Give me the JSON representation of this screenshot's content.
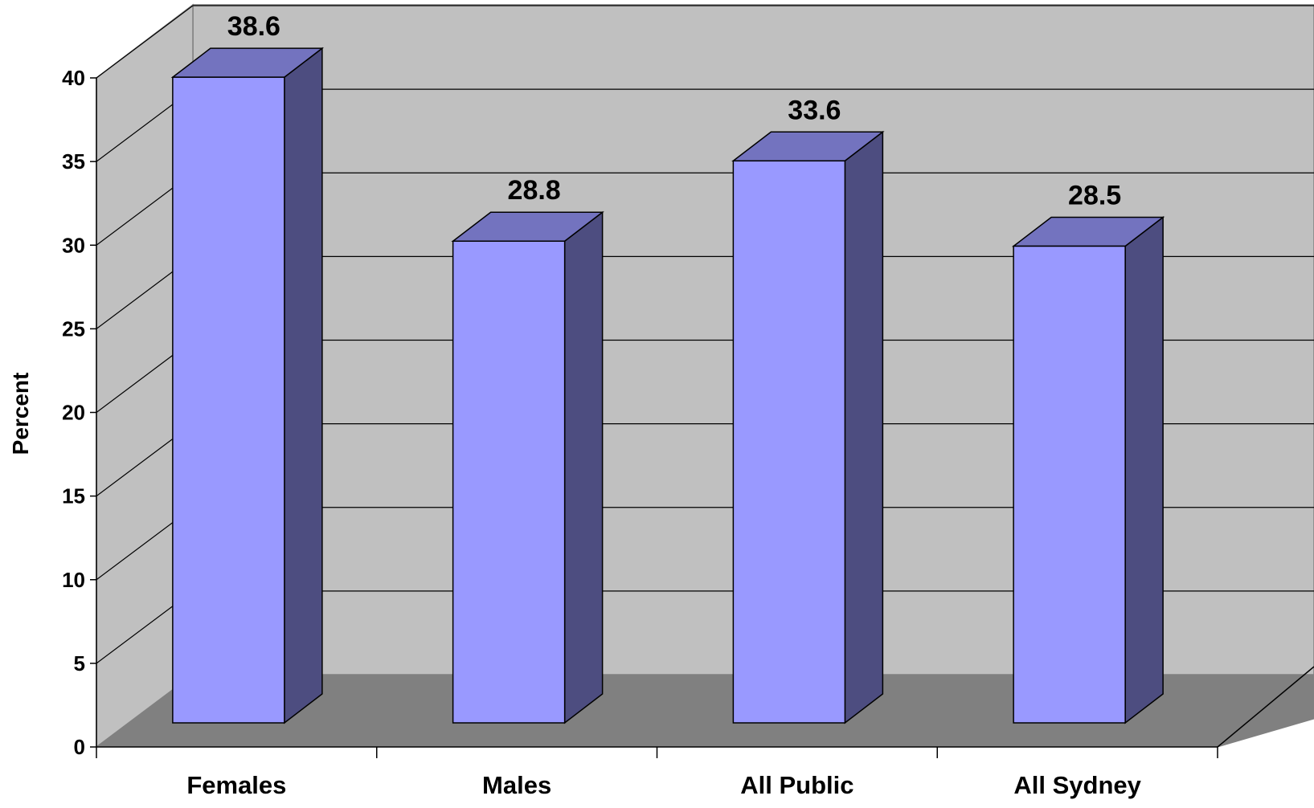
{
  "chart_data": {
    "type": "bar",
    "title": "",
    "xlabel": "",
    "ylabel": "Percent",
    "categories": [
      "Females",
      "Males",
      "All Public",
      "All Sydney"
    ],
    "values": [
      38.6,
      28.8,
      33.6,
      28.5
    ],
    "data_labels": [
      "38.6",
      "28.8",
      "33.6",
      "28.5"
    ],
    "ylim": [
      0,
      40
    ],
    "yticks": [
      "0",
      "5",
      "10",
      "15",
      "20",
      "25",
      "30",
      "35",
      "40"
    ],
    "grid": true,
    "legend": "none",
    "style": "3d-column",
    "colors": {
      "bar_front": "#9999ff",
      "bar_top": "#7373bf",
      "bar_side": "#4d4d80",
      "back_wall": "#c0c0c0",
      "floor": "#808080"
    }
  }
}
